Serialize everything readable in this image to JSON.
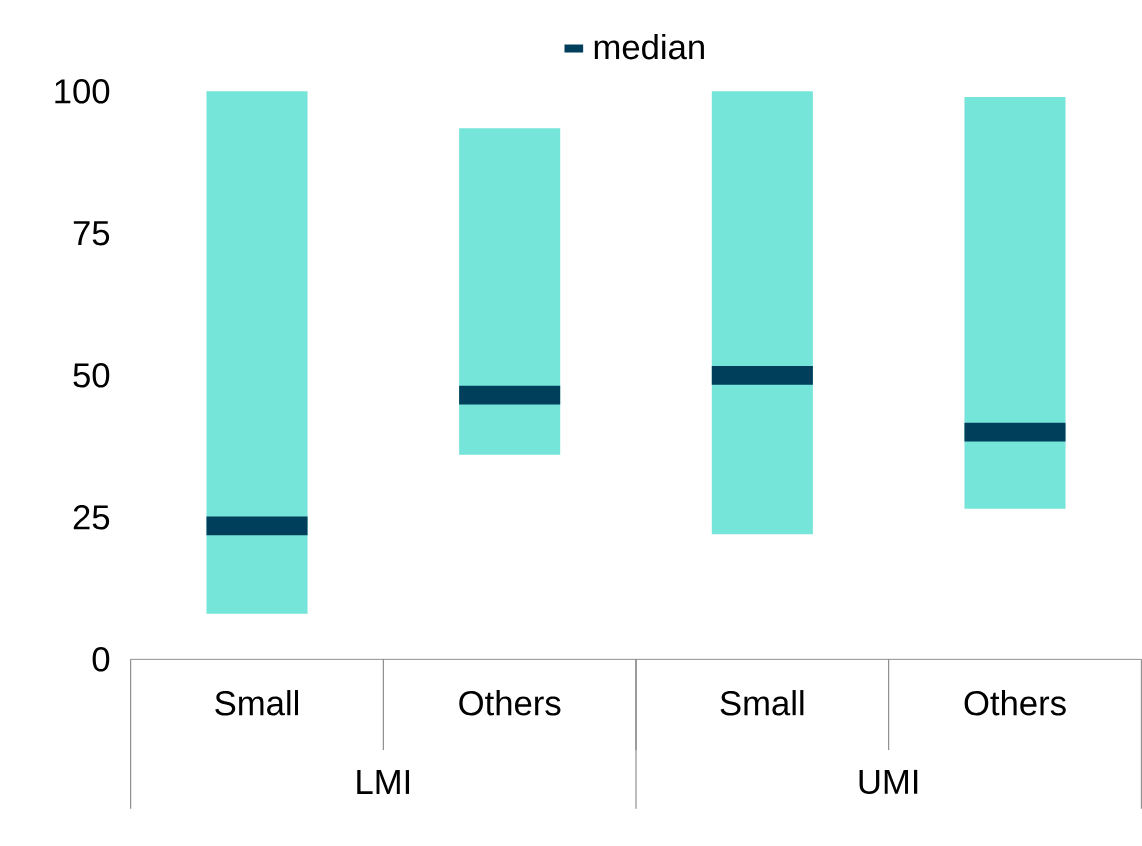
{
  "chart_data": {
    "type": "box",
    "categories": [
      "Small",
      "Others",
      "Small",
      "Others"
    ],
    "series": [
      {
        "name": "median",
        "color": "#003f5c",
        "colors": [
          "#76e5d9",
          "#76e5d9",
          "#76e5d9",
          "#76e5d9"
        ],
        "boxes": [
          {
            "low": 8,
            "q1": 8,
            "median": 23.5,
            "q3": 100,
            "high": 100
          },
          {
            "low": 36,
            "q1": 36,
            "median": 46.5,
            "q3": 93.5,
            "high": 93.5
          },
          {
            "low": 22,
            "q1": 22,
            "median": 50,
            "q3": 100,
            "high": 100
          },
          {
            "low": 26.5,
            "q1": 26.5,
            "median": 40,
            "q3": 99,
            "high": 99
          }
        ]
      }
    ],
    "ylim": [
      0,
      100
    ],
    "yticks": [
      0,
      25,
      50,
      75,
      100
    ],
    "legend": "top",
    "grid": false,
    "annotations": [
      "LMI",
      "UMI"
    ]
  }
}
